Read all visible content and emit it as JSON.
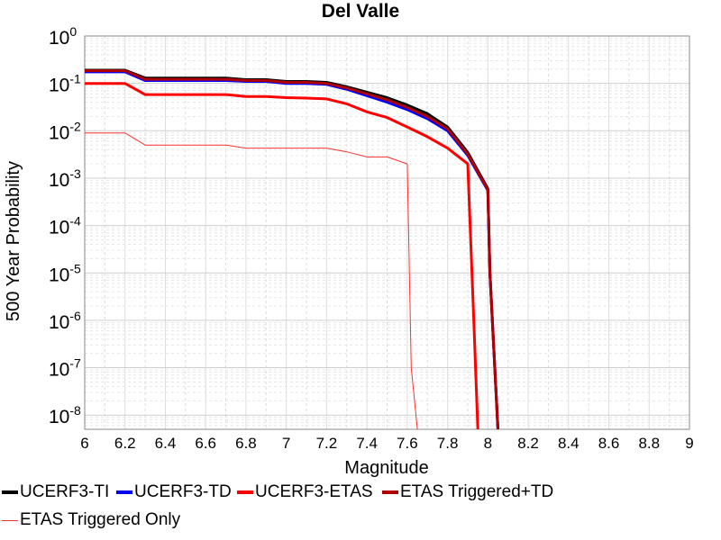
{
  "chart_data": {
    "type": "line",
    "title": "Del Valle",
    "xlabel": "Magnitude",
    "ylabel": "500 Year Probability",
    "xlim": [
      6,
      9
    ],
    "ylim_log10": [
      -8.3,
      0
    ],
    "yscale": "log",
    "x_ticks": [
      "6",
      "6.2",
      "6.4",
      "6.6",
      "6.8",
      "7",
      "7.2",
      "7.4",
      "7.6",
      "7.8",
      "8",
      "8.2",
      "8.4",
      "8.6",
      "8.8",
      "9"
    ],
    "y_tick_exponents": [
      "0",
      "-1",
      "-2",
      "-3",
      "-4",
      "-5",
      "-6",
      "-7",
      "-8"
    ],
    "y_tick_base": "10",
    "grid": true,
    "series": [
      {
        "name": "UCERF3-TI",
        "color": "#000000",
        "width": 3,
        "x": [
          6.0,
          6.1,
          6.2,
          6.3,
          6.4,
          6.5,
          6.6,
          6.7,
          6.8,
          6.9,
          7.0,
          7.1,
          7.2,
          7.3,
          7.4,
          7.5,
          7.6,
          7.7,
          7.8,
          7.9,
          8.0,
          8.01,
          8.05
        ],
        "y": [
          0.19,
          0.19,
          0.19,
          0.13,
          0.13,
          0.13,
          0.13,
          0.13,
          0.12,
          0.12,
          0.11,
          0.11,
          0.105,
          0.085,
          0.065,
          0.05,
          0.035,
          0.023,
          0.012,
          0.0035,
          0.0006,
          1e-05,
          1e-09
        ]
      },
      {
        "name": "UCERF3-TD",
        "color": "#0000ff",
        "width": 3,
        "x": [
          6.0,
          6.1,
          6.2,
          6.3,
          6.4,
          6.5,
          6.6,
          6.7,
          6.8,
          6.9,
          7.0,
          7.1,
          7.2,
          7.3,
          7.4,
          7.5,
          7.6,
          7.7,
          7.8,
          7.9,
          8.0,
          8.01,
          8.05
        ],
        "y": [
          0.175,
          0.175,
          0.175,
          0.115,
          0.115,
          0.115,
          0.115,
          0.115,
          0.11,
          0.11,
          0.1,
          0.1,
          0.095,
          0.075,
          0.055,
          0.04,
          0.028,
          0.018,
          0.01,
          0.003,
          0.00055,
          1e-05,
          1e-09
        ]
      },
      {
        "name": "UCERF3-ETAS",
        "color": "#ff0000",
        "width": 3,
        "x": [
          6.0,
          6.1,
          6.2,
          6.3,
          6.4,
          6.5,
          6.6,
          6.7,
          6.8,
          6.9,
          7.0,
          7.1,
          7.2,
          7.3,
          7.4,
          7.5,
          7.6,
          7.7,
          7.8,
          7.9,
          7.93,
          7.95
        ],
        "y": [
          0.1,
          0.1,
          0.1,
          0.058,
          0.058,
          0.058,
          0.058,
          0.058,
          0.053,
          0.053,
          0.05,
          0.049,
          0.047,
          0.037,
          0.025,
          0.019,
          0.012,
          0.0075,
          0.0043,
          0.002,
          1e-06,
          1e-09
        ]
      },
      {
        "name": "ETAS Triggered+TD",
        "color": "#b00000",
        "width": 3,
        "x": [
          6.0,
          6.1,
          6.2,
          6.3,
          6.4,
          6.5,
          6.6,
          6.7,
          6.8,
          6.9,
          7.0,
          7.1,
          7.2,
          7.3,
          7.4,
          7.5,
          7.6,
          7.7,
          7.8,
          7.9,
          8.0,
          8.01,
          8.05
        ],
        "y": [
          0.185,
          0.185,
          0.185,
          0.122,
          0.122,
          0.122,
          0.122,
          0.122,
          0.115,
          0.115,
          0.105,
          0.105,
          0.1,
          0.08,
          0.06,
          0.045,
          0.031,
          0.02,
          0.011,
          0.0032,
          0.00057,
          1e-05,
          1e-09
        ]
      },
      {
        "name": "ETAS Triggered Only",
        "color": "#ff3030",
        "width": 1,
        "x": [
          6.0,
          6.1,
          6.2,
          6.3,
          6.4,
          6.5,
          6.6,
          6.7,
          6.8,
          6.9,
          7.0,
          7.1,
          7.2,
          7.3,
          7.4,
          7.5,
          7.6,
          7.62,
          7.65
        ],
        "y": [
          0.009,
          0.009,
          0.009,
          0.005,
          0.005,
          0.005,
          0.005,
          0.005,
          0.0043,
          0.0043,
          0.0043,
          0.0043,
          0.0043,
          0.0036,
          0.0028,
          0.0028,
          0.002,
          1e-07,
          1e-09
        ]
      }
    ]
  },
  "legend": {
    "items": [
      {
        "label": "UCERF3-TI",
        "color": "#000000",
        "thick": true
      },
      {
        "label": "UCERF3-TD",
        "color": "#0000ff",
        "thick": true
      },
      {
        "label": "UCERF3-ETAS",
        "color": "#ff0000",
        "thick": true
      },
      {
        "label": "ETAS Triggered+TD",
        "color": "#b00000",
        "thick": true
      },
      {
        "label": "ETAS Triggered Only",
        "color": "#ff3030",
        "thick": false
      }
    ]
  }
}
